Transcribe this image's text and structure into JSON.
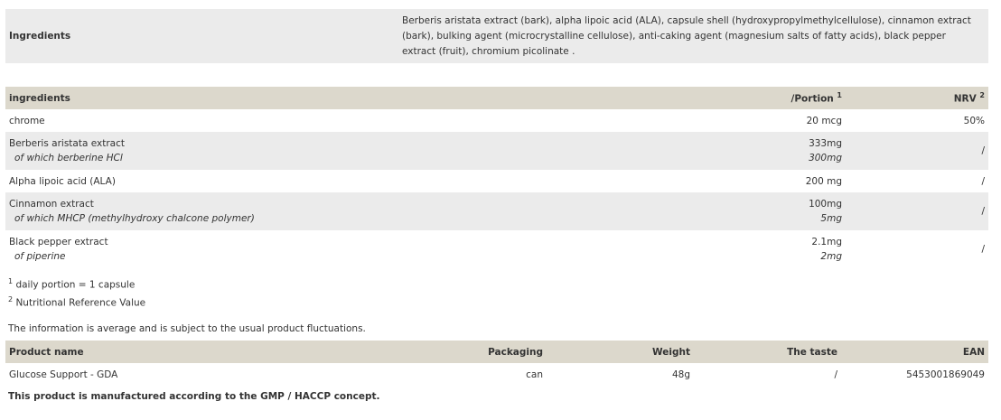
{
  "ingredients_box": {
    "label": "Ingredients",
    "text": "Berberis aristata extract (bark), alpha lipoic acid (ALA), capsule shell (hydroxypropylmethylcellulose), cinnamon extract (bark), bulking agent (microcrystalline cellulose), anti-caking agent (magnesium salts of fatty acids), black pepper extract (fruit), chromium picolinate ."
  },
  "nutrition": {
    "headers": {
      "name": "ingredients",
      "portion": "/Portion",
      "portion_sup": "1",
      "nrv": "NRV",
      "nrv_sup": "2"
    },
    "rows": [
      {
        "name": "chrome",
        "portion": "20 mcg",
        "nrv": "50%"
      },
      {
        "name": "Berberis aristata extract",
        "sub": "of which berberine HCl",
        "portion": "333mg",
        "sub_portion": "300mg",
        "nrv": "/"
      },
      {
        "name": "Alpha lipoic acid (ALA)",
        "portion": "200 mg",
        "nrv": "/"
      },
      {
        "name": "Cinnamon extract",
        "sub": "of which MHCP (methylhydroxy chalcone polymer)",
        "portion": "100mg",
        "sub_portion": "5mg",
        "nrv": "/"
      },
      {
        "name": "Black pepper extract",
        "sub": "of piperine",
        "portion": "2.1mg",
        "sub_portion": "2mg",
        "nrv": "/"
      }
    ]
  },
  "footnotes": [
    {
      "sup": "1",
      "text": "daily portion = 1 capsule"
    },
    {
      "sup": "2",
      "text": "Nutritional Reference Value"
    }
  ],
  "info": "The information is average and is subject to the usual product fluctuations.",
  "product": {
    "headers": [
      "Product name",
      "Packaging",
      "Weight",
      "The taste",
      "EAN"
    ],
    "row": [
      "Glucose Support - GDA",
      "can",
      "48g",
      "/",
      "5453001869049"
    ]
  },
  "gmp": "This product is manufactured according to the GMP / HACCP concept."
}
